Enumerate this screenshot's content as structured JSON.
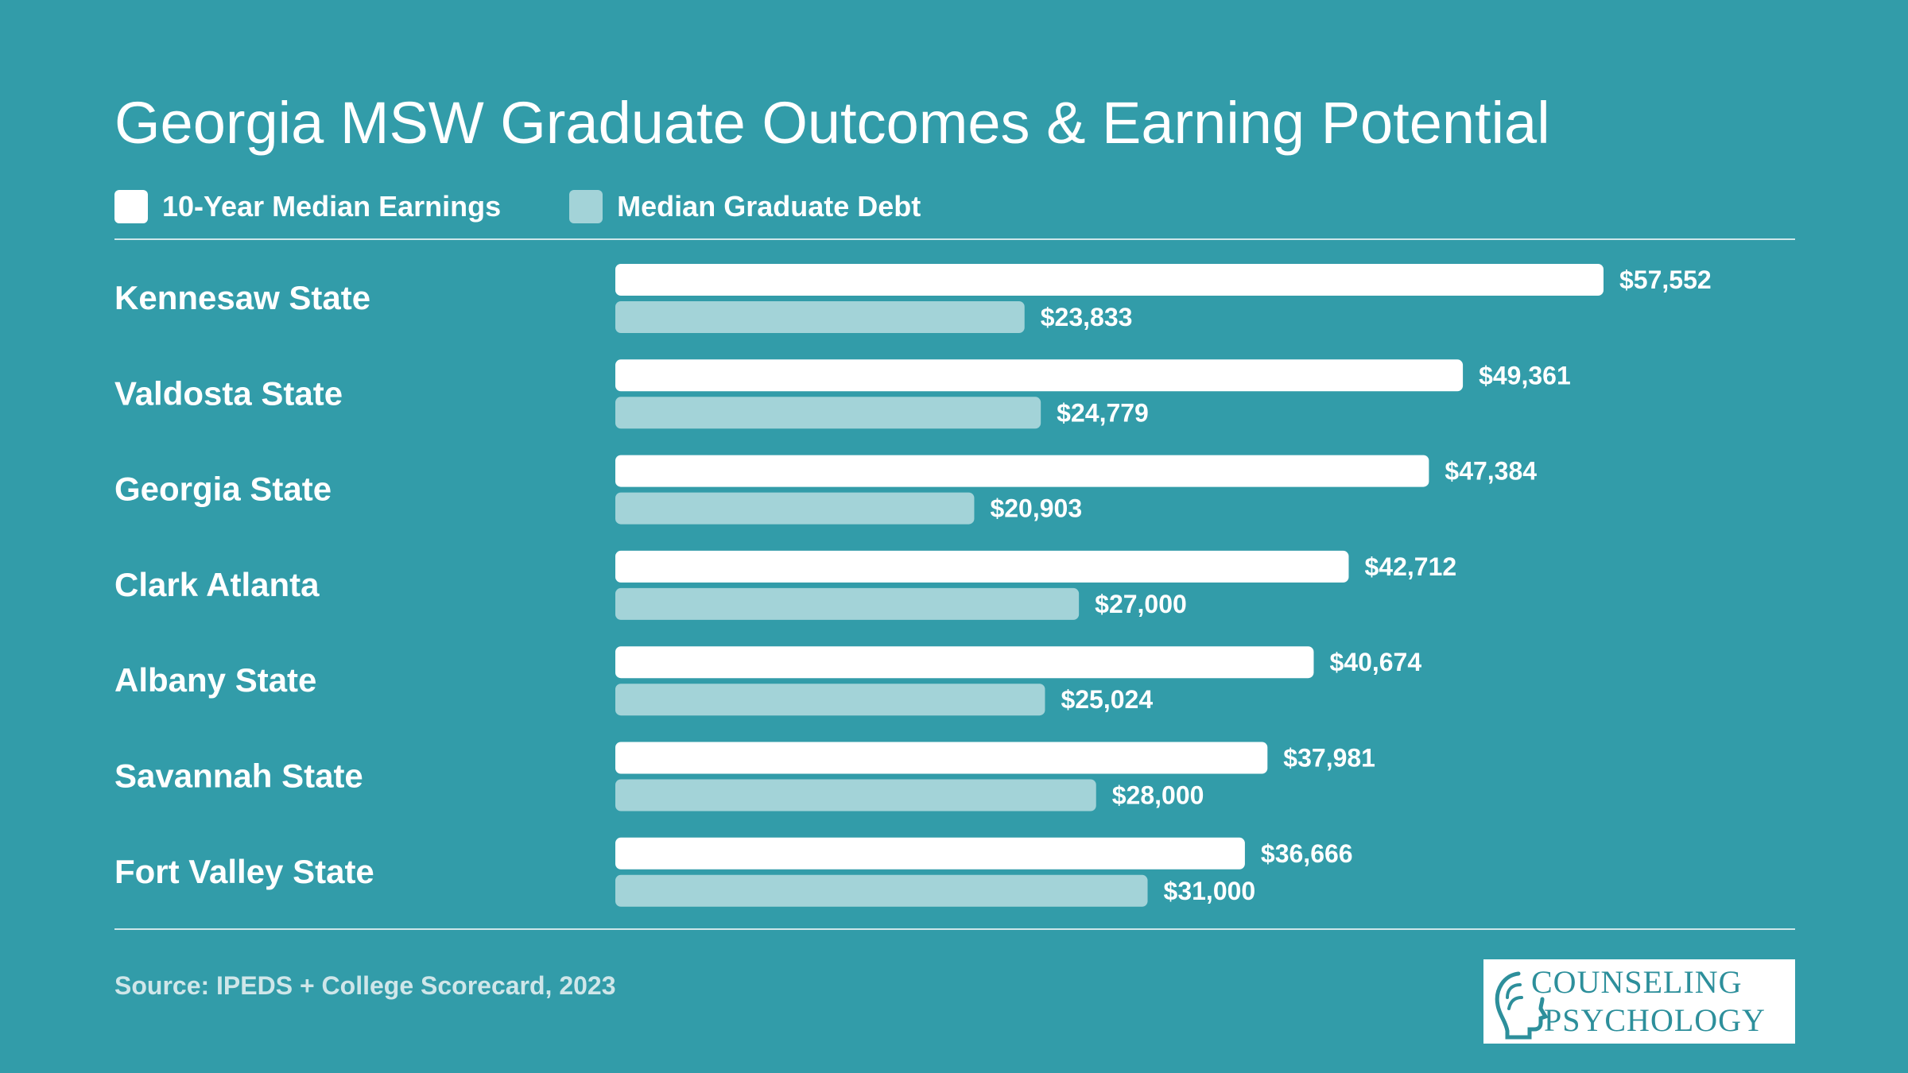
{
  "colors": {
    "background": "#329ca9",
    "earnings": "#ffffff",
    "debt": "#a3d3d8",
    "logo_text": "#2d8f9b"
  },
  "chart_data": {
    "type": "bar",
    "orientation": "horizontal",
    "title": "Georgia MSW Graduate Outcomes & Earning Potential",
    "categories": [
      "Kennesaw State",
      "Valdosta State",
      "Georgia State",
      "Clark Atlanta",
      "Albany State",
      "Savannah State",
      "Fort Valley State"
    ],
    "series": [
      {
        "name": "10-Year Median Earnings",
        "values": [
          57552,
          49361,
          47384,
          42712,
          40674,
          37981,
          36666
        ],
        "labels": [
          "$57,552",
          "$49,361",
          "$47,384",
          "$42,712",
          "$40,674",
          "$37,981",
          "$36,666"
        ]
      },
      {
        "name": "Median Graduate Debt",
        "values": [
          23833,
          24779,
          20903,
          27000,
          25024,
          28000,
          31000
        ],
        "labels": [
          "$23,833",
          "$24,779",
          "$20,903",
          "$27,000",
          "$25,024",
          "$28,000",
          "$31,000"
        ]
      }
    ],
    "xlim": [
      0,
      57552
    ],
    "grid": false,
    "legend": "top-left"
  },
  "source": "Source: IPEDS + College Scorecard, 2023",
  "logo": {
    "line1": "COUNSELING",
    "line2": "PSYCHOLOGY",
    "icon": "head-profile-icon"
  }
}
